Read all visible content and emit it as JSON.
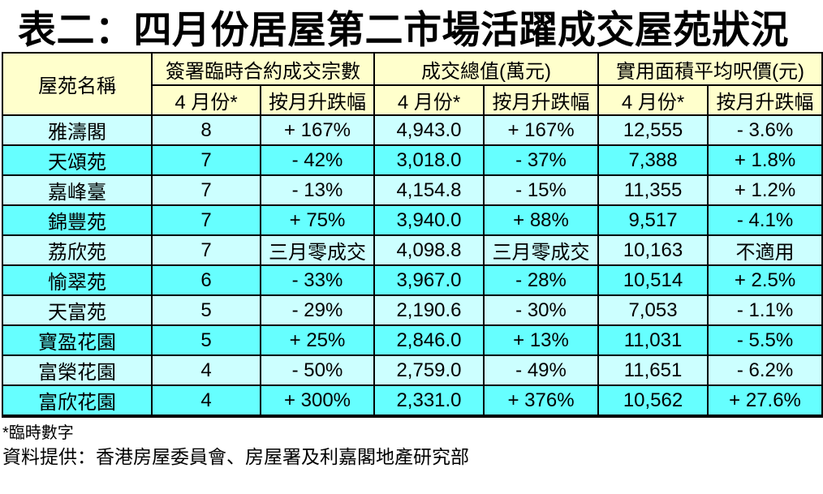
{
  "title": "表二：四月份居屋第二市場活躍成交屋苑狀況",
  "table": {
    "name_header": "屋苑名稱",
    "groups": [
      "簽署臨時合約成交宗數",
      "成交總值(萬元)",
      "實用面積平均呎價(元)"
    ],
    "sub_headers": [
      "4 月份*",
      "按月升跌幅"
    ],
    "rows": [
      [
        "雅濤閣",
        "8",
        "+ 167%",
        "4,943.0",
        "+ 167%",
        "12,555",
        "- 3.6%"
      ],
      [
        "天頌苑",
        "7",
        "- 42%",
        "3,018.0",
        "- 37%",
        "7,388",
        "+ 1.8%"
      ],
      [
        "嘉峰臺",
        "7",
        "- 13%",
        "4,154.8",
        "- 15%",
        "11,355",
        "+ 1.2%"
      ],
      [
        "錦豐苑",
        "7",
        "+ 75%",
        "3,940.0",
        "+ 88%",
        "9,517",
        "- 4.1%"
      ],
      [
        "荔欣苑",
        "7",
        "三月零成交",
        "4,098.8",
        "三月零成交",
        "10,163",
        "不適用"
      ],
      [
        "愉翠苑",
        "6",
        "- 33%",
        "3,967.0",
        "- 28%",
        "10,514",
        "+ 2.5%"
      ],
      [
        "天富苑",
        "5",
        "- 29%",
        "2,190.6",
        "- 30%",
        "7,053",
        "- 1.1%"
      ],
      [
        "寶盈花園",
        "5",
        "+ 25%",
        "2,846.0",
        "+ 13%",
        "11,031",
        "- 5.5%"
      ],
      [
        "富榮花園",
        "4",
        "- 50%",
        "2,759.0",
        "- 49%",
        "11,651",
        "- 6.2%"
      ],
      [
        "富欣花園",
        "4",
        "+ 300%",
        "2,331.0",
        "+ 376%",
        "10,562",
        "+ 27.6%"
      ]
    ]
  },
  "footnotes": [
    "*臨時數字",
    "資料提供：香港房屋委員會、房屋署及利嘉閣地產研究部"
  ],
  "colors": {
    "header_bg": "#FFFFCC",
    "row_light": "#CCFFFF",
    "row_dark": "#66FFFF",
    "border": "#000000",
    "title_color": "#000000"
  }
}
